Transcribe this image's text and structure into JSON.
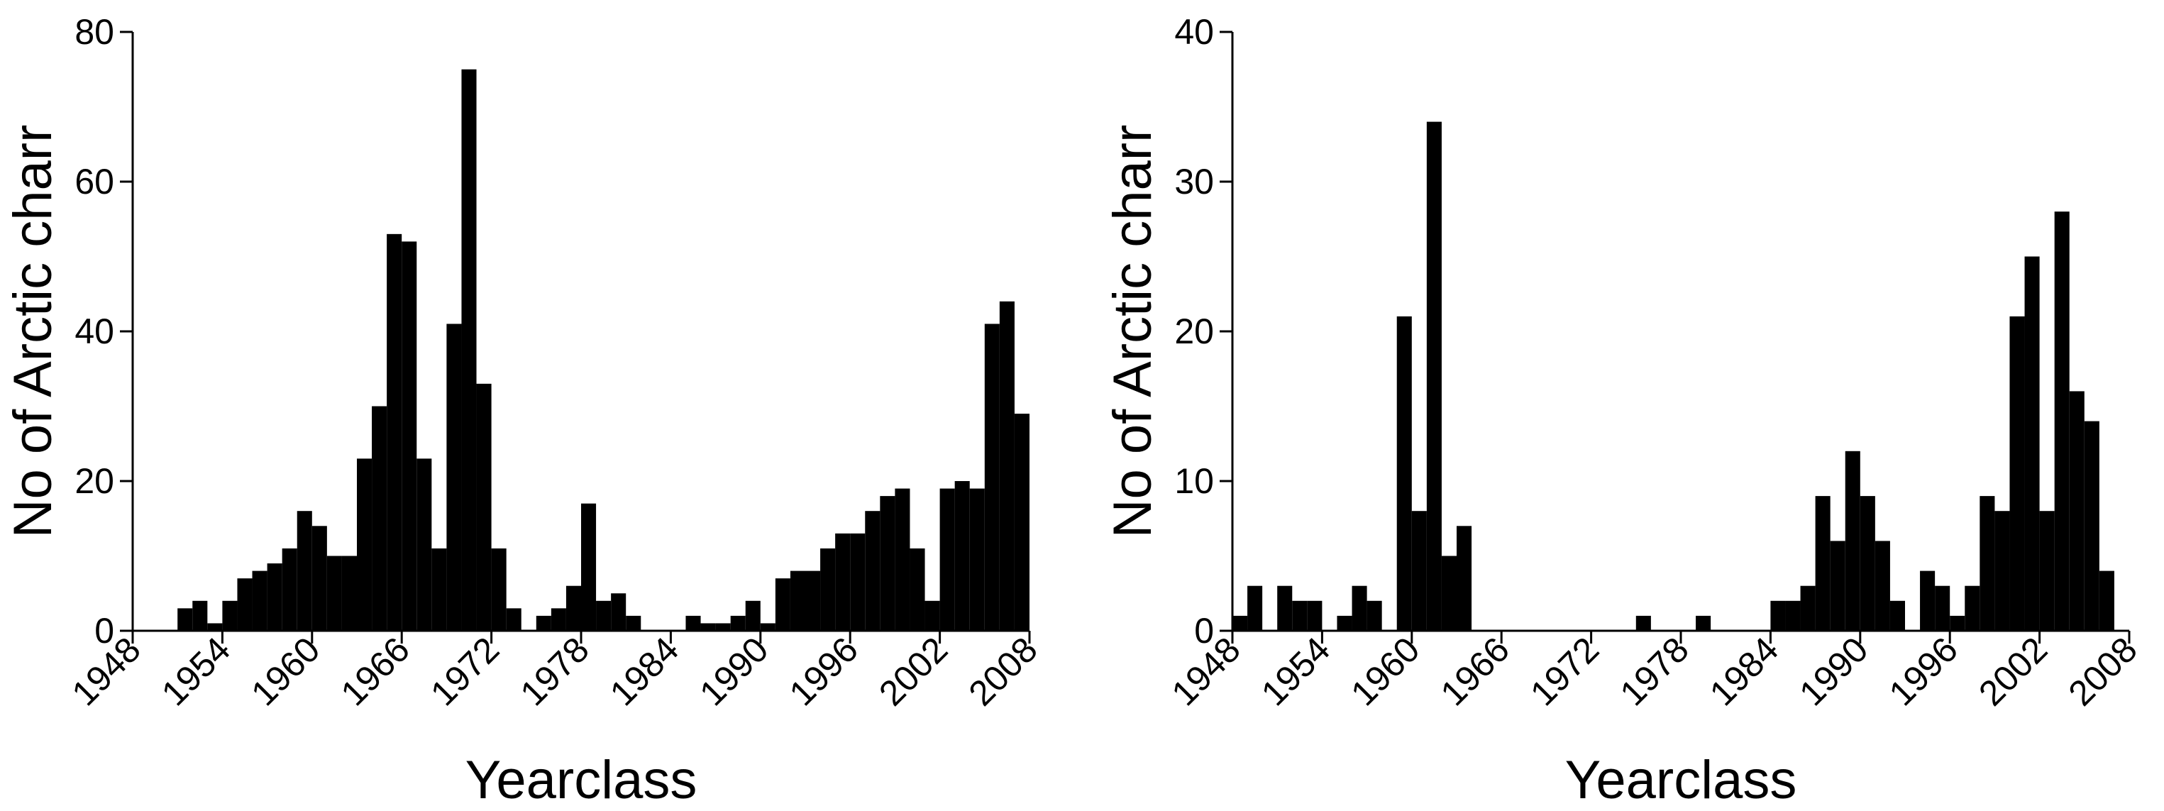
{
  "chart_data": [
    {
      "type": "bar",
      "xlabel": "Yearclass",
      "ylabel": "No of Arctic charr",
      "color": "#000000",
      "x": [
        1951,
        1952,
        1953,
        1954,
        1955,
        1956,
        1957,
        1958,
        1959,
        1960,
        1961,
        1962,
        1963,
        1964,
        1965,
        1966,
        1967,
        1968,
        1969,
        1970,
        1971,
        1972,
        1973,
        1974,
        1975,
        1976,
        1977,
        1978,
        1979,
        1980,
        1981,
        1982,
        1983,
        1984,
        1985,
        1986,
        1987,
        1988,
        1989,
        1990,
        1991,
        1992,
        1993,
        1994,
        1995,
        1996,
        1997,
        1998,
        1999,
        2000,
        2001,
        2002,
        2003,
        2004,
        2005,
        2006,
        2007
      ],
      "values": [
        3,
        4,
        1,
        4,
        7,
        8,
        9,
        11,
        16,
        14,
        10,
        10,
        23,
        30,
        53,
        52,
        23,
        11,
        41,
        75,
        33,
        11,
        3,
        0,
        2,
        3,
        6,
        17,
        4,
        5,
        2,
        0,
        0,
        0,
        2,
        1,
        1,
        2,
        4,
        1,
        7,
        8,
        8,
        11,
        13,
        13,
        16,
        18,
        19,
        11,
        4,
        19,
        20,
        19,
        41,
        44,
        29
      ],
      "xlim": [
        1948,
        2008
      ],
      "xticks": [
        1948,
        1954,
        1960,
        1966,
        1972,
        1978,
        1984,
        1990,
        1996,
        2002,
        2008
      ],
      "ylim": [
        0,
        80
      ],
      "yticks": [
        0,
        20,
        40,
        60,
        80
      ]
    },
    {
      "type": "bar",
      "xlabel": "Yearclass",
      "ylabel": "No of Arctic charr",
      "color": "#000000",
      "x": [
        1948,
        1949,
        1950,
        1951,
        1952,
        1953,
        1954,
        1955,
        1956,
        1957,
        1958,
        1959,
        1960,
        1961,
        1962,
        1963,
        1964,
        1965,
        1966,
        1967,
        1968,
        1969,
        1970,
        1971,
        1972,
        1973,
        1974,
        1975,
        1976,
        1977,
        1978,
        1979,
        1980,
        1981,
        1982,
        1983,
        1984,
        1985,
        1986,
        1987,
        1988,
        1989,
        1990,
        1991,
        1992,
        1993,
        1994,
        1995,
        1996,
        1997,
        1998,
        1999,
        2000,
        2001,
        2002,
        2003,
        2004,
        2005,
        2006
      ],
      "values": [
        1,
        3,
        0,
        3,
        2,
        2,
        0,
        1,
        3,
        2,
        0,
        21,
        8,
        34,
        5,
        7,
        0,
        0,
        0,
        0,
        0,
        0,
        0,
        0,
        0,
        0,
        0,
        1,
        0,
        0,
        0,
        1,
        0,
        0,
        0,
        0,
        2,
        2,
        3,
        9,
        6,
        12,
        9,
        6,
        2,
        0,
        4,
        3,
        1,
        3,
        9,
        8,
        21,
        25,
        8,
        28,
        16,
        14,
        4
      ],
      "xlim": [
        1948,
        2008
      ],
      "xticks": [
        1948,
        1954,
        1960,
        1966,
        1972,
        1978,
        1984,
        1990,
        1996,
        2002,
        2008
      ],
      "ylim": [
        0,
        40
      ],
      "yticks": [
        0,
        10,
        20,
        30,
        40
      ]
    }
  ]
}
